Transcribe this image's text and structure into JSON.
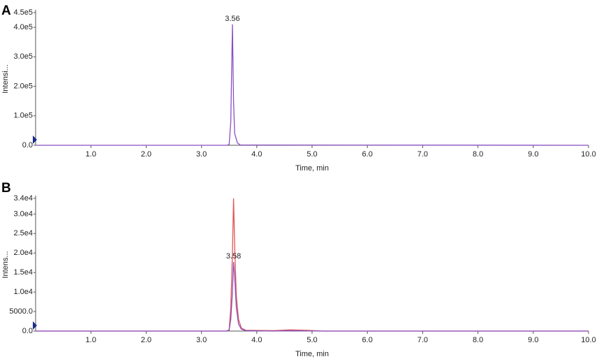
{
  "chart_data": [
    {
      "type": "line",
      "panel_label": "A",
      "y_label": "Intensi...",
      "x_label": "Time, min",
      "annotation": "3.56",
      "x": [
        0,
        3.45,
        3.5,
        3.53,
        3.56,
        3.58,
        3.6,
        3.65,
        3.7,
        10
      ],
      "series": [
        {
          "color": "#8a4fc0",
          "values": [
            0,
            0,
            2000,
            80000,
            410000,
            150000,
            40000,
            8000,
            1000,
            0
          ]
        }
      ],
      "xlim": [
        0,
        10
      ],
      "xticks": [
        {
          "value": 1,
          "label": "1.0"
        },
        {
          "value": 2,
          "label": "2.0"
        },
        {
          "value": 3,
          "label": "3.0"
        },
        {
          "value": 4,
          "label": "4.0"
        },
        {
          "value": 5,
          "label": "5.0"
        },
        {
          "value": 6,
          "label": "6.0"
        },
        {
          "value": 7,
          "label": "7.0"
        },
        {
          "value": 8,
          "label": "8.0"
        },
        {
          "value": 9,
          "label": "9.0"
        },
        {
          "value": 10,
          "label": "10.0"
        }
      ],
      "ylim": [
        0,
        450000
      ],
      "yticks": [
        {
          "value": 0,
          "label": "0.0"
        },
        {
          "value": 100000,
          "label": "1.0e5"
        },
        {
          "value": 200000,
          "label": "2.0e5"
        },
        {
          "value": 300000,
          "label": "3.0e5"
        },
        {
          "value": 400000,
          "label": "4.0e5"
        },
        {
          "value": 450000,
          "label": "4.5e5"
        }
      ]
    },
    {
      "type": "line",
      "panel_label": "B",
      "y_label": "Intens...",
      "x_label": "Time, min",
      "annotation": "3.58",
      "x": [
        0,
        3.0,
        3.45,
        3.5,
        3.53,
        3.56,
        3.58,
        3.6,
        3.63,
        3.67,
        3.72,
        3.8,
        4.3,
        4.6,
        4.9,
        5.2,
        10
      ],
      "series": [
        {
          "color": "#e05555",
          "values": [
            0,
            0,
            0,
            300,
            6000,
            20000,
            34000,
            22000,
            9000,
            3000,
            800,
            200,
            100,
            300,
            200,
            0,
            0
          ]
        },
        {
          "color": "#8a4fc0",
          "values": [
            0,
            0,
            0,
            200,
            3000,
            10000,
            17700,
            14000,
            6000,
            1800,
            500,
            100,
            0,
            100,
            50,
            0,
            0
          ]
        }
      ],
      "xlim": [
        0,
        10
      ],
      "xticks": [
        {
          "value": 1,
          "label": "1.0"
        },
        {
          "value": 2,
          "label": "2.0"
        },
        {
          "value": 3,
          "label": "3.0"
        },
        {
          "value": 4,
          "label": "4.0"
        },
        {
          "value": 5,
          "label": "5.0"
        },
        {
          "value": 6,
          "label": "6.0"
        },
        {
          "value": 7,
          "label": "7.0"
        },
        {
          "value": 8,
          "label": "8.0"
        },
        {
          "value": 9,
          "label": "9.0"
        },
        {
          "value": 10,
          "label": "10.0"
        }
      ],
      "ylim": [
        0,
        34000
      ],
      "yticks": [
        {
          "value": 0,
          "label": "0.0"
        },
        {
          "value": 5000,
          "label": "5000.0"
        },
        {
          "value": 10000,
          "label": "1.0e4"
        },
        {
          "value": 15000,
          "label": "1.5e4"
        },
        {
          "value": 20000,
          "label": "2.0e4"
        },
        {
          "value": 25000,
          "label": "2.5e4"
        },
        {
          "value": 30000,
          "label": "3.0e4"
        },
        {
          "value": 34000,
          "label": "3.4e4"
        }
      ]
    }
  ]
}
